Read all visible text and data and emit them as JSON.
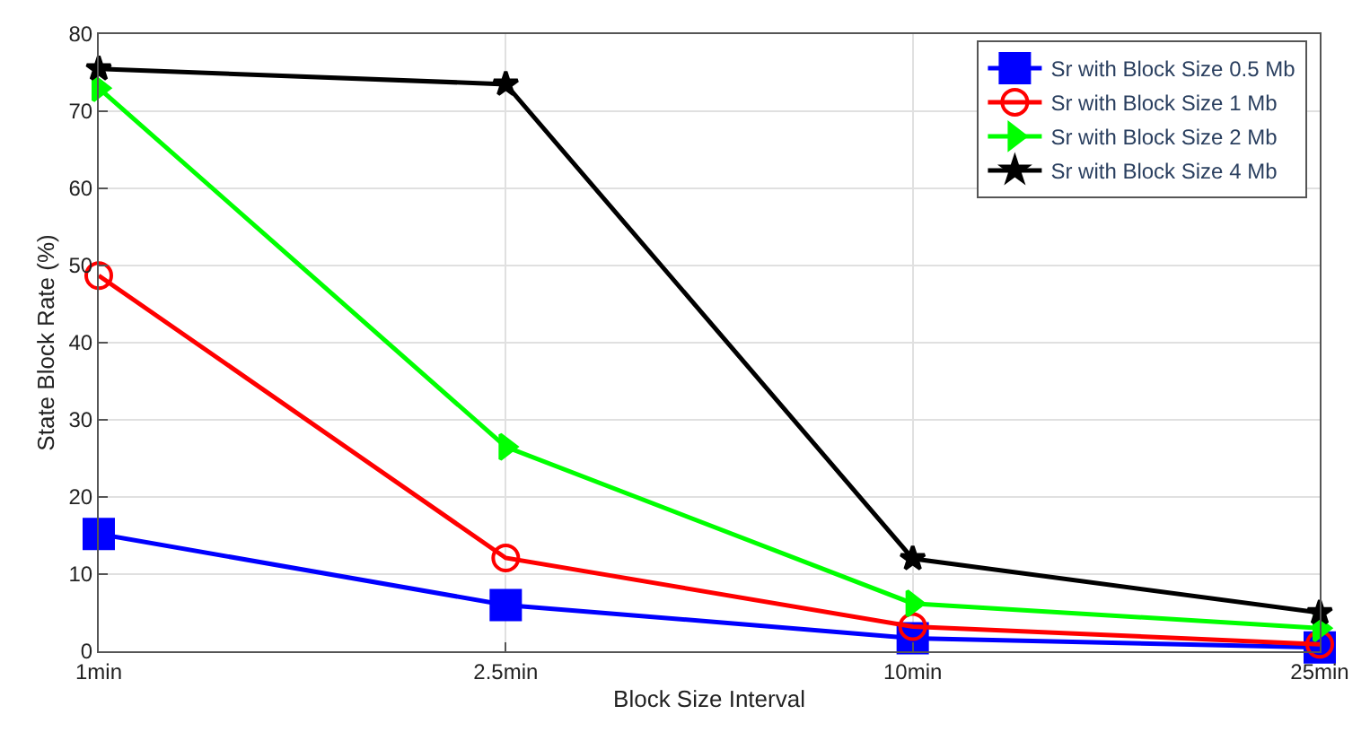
{
  "chart_data": {
    "type": "line",
    "xlabel": "Block Size Interval",
    "ylabel": "State Block Rate (%)",
    "categories": [
      "1min",
      "2.5min",
      "10min",
      "25min"
    ],
    "ylim": [
      0,
      80
    ],
    "yticks": [
      0,
      10,
      20,
      30,
      40,
      50,
      60,
      70,
      80
    ],
    "grid": true,
    "legend": "top right",
    "line_style": "solid",
    "series": [
      {
        "name": "Sr with Block Size 0.5 Mb",
        "color": "#0000ff",
        "marker": "square",
        "values": [
          15.2,
          6.0,
          1.7,
          0.5
        ]
      },
      {
        "name": "Sr with Block Size 1 Mb",
        "color": "#ff0000",
        "marker": "circle",
        "values": [
          48.7,
          12.1,
          3.2,
          0.9
        ]
      },
      {
        "name": "Sr with Block Size 2 Mb",
        "color": "#00ff00",
        "marker": "triangle",
        "values": [
          73,
          26.5,
          6.2,
          3.0
        ]
      },
      {
        "name": "Sr with Block Size 4 Mb",
        "color": "#000000",
        "marker": "star",
        "values": [
          75.5,
          73.5,
          12,
          5
        ]
      }
    ]
  }
}
